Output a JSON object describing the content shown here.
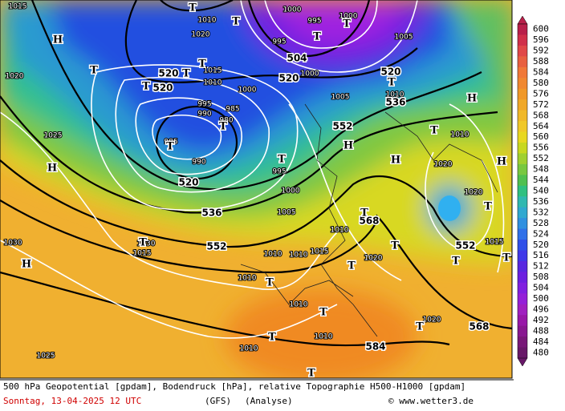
{
  "map": {
    "height_labels": [
      "520",
      "520",
      "504",
      "520",
      "520",
      "536",
      "552",
      "520",
      "536",
      "552",
      "568",
      "552",
      "568",
      "584"
    ],
    "pressure_labels": [
      "1010",
      "1020",
      "1015",
      "1010",
      "1000",
      "995",
      "990",
      "985",
      "980",
      "985",
      "990",
      "995",
      "1000",
      "1005",
      "1010",
      "1015",
      "1010",
      "1010",
      "1020",
      "1025",
      "1020",
      "1030",
      "1025",
      "1010",
      "1010",
      "1010",
      "1010",
      "1020",
      "1015",
      "1020",
      "1020",
      "1010",
      "995",
      "1000",
      "1000",
      "995",
      "1005",
      "1000",
      "1010",
      "1005",
      "1015",
      "1030",
      "1015"
    ],
    "centers": [
      "H",
      "T",
      "T",
      "T",
      "T",
      "T",
      "T",
      "T",
      "T",
      "T",
      "T",
      "T",
      "T",
      "H",
      "H",
      "H",
      "H",
      "H",
      "T",
      "T",
      "T",
      "T",
      "T",
      "T",
      "T",
      "T",
      "T",
      "H",
      "T",
      "T",
      "T",
      "T"
    ]
  },
  "colorbar": {
    "labels": [
      600,
      596,
      592,
      588,
      584,
      580,
      576,
      572,
      568,
      564,
      560,
      556,
      552,
      548,
      544,
      540,
      536,
      532,
      528,
      524,
      520,
      516,
      512,
      508,
      504,
      500,
      496,
      492,
      488,
      484,
      480
    ]
  },
  "footer": {
    "description": "500 hPa Geopotential [gpdam], Bodendruck [hPa], relative Topographie H500-H1000 [gpdam]",
    "date": "Sonntag, 13-04-2025  12 UTC",
    "model": "(GFS)",
    "run": "(Analyse)",
    "credit": "© www.wetter3.de"
  }
}
